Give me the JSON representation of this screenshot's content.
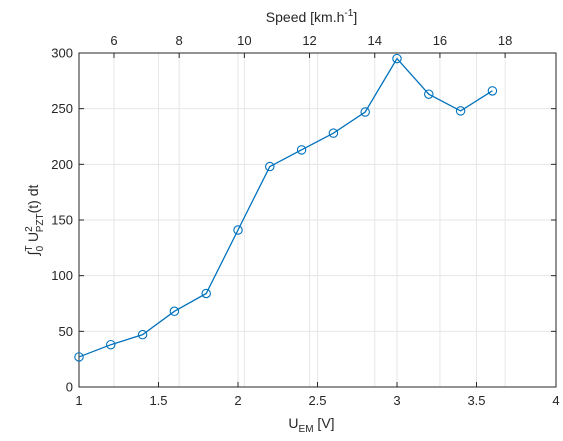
{
  "chart_data": {
    "type": "line",
    "x": [
      1.0,
      1.2,
      1.4,
      1.6,
      1.8,
      2.0,
      2.2,
      2.4,
      2.6,
      2.8,
      3.0,
      3.2,
      3.4,
      3.6
    ],
    "series": [
      {
        "values": [
          27,
          38,
          47,
          68,
          84,
          141,
          198,
          213,
          228,
          247,
          295,
          263,
          248,
          266
        ]
      }
    ],
    "xlim": [
      1,
      4
    ],
    "ylim": [
      0,
      300
    ],
    "xticks": [
      1,
      1.5,
      2,
      2.5,
      3,
      3.5,
      4
    ],
    "xtick_labels": [
      "1",
      "1.5",
      "2",
      "2.5",
      "3",
      "3.5",
      "4"
    ],
    "yticks": [
      0,
      50,
      100,
      150,
      200,
      250,
      300
    ],
    "ytick_labels": [
      "0",
      "50",
      "100",
      "150",
      "200",
      "250",
      "300"
    ],
    "top_axis": {
      "label_main": "Speed [km.h",
      "label_sup": "-1",
      "label_close": "]",
      "tick_labels": [
        "6",
        "8",
        "10",
        "12",
        "14",
        "16",
        "18"
      ],
      "tick_positions_bottom_units": [
        1.22,
        1.63,
        2.04,
        2.45,
        2.86,
        3.27,
        3.68
      ]
    },
    "xlabel": {
      "main": "U",
      "sub": "EM",
      "rest": " [V]"
    },
    "ylabel": {
      "integral": "∫",
      "upper": "T",
      "lower": "0",
      "main": " U",
      "sup": "2",
      "sub": "PZT",
      "rest": "(t) dt"
    },
    "grid": true,
    "line_color": "#0072BD",
    "marker": "circle"
  }
}
